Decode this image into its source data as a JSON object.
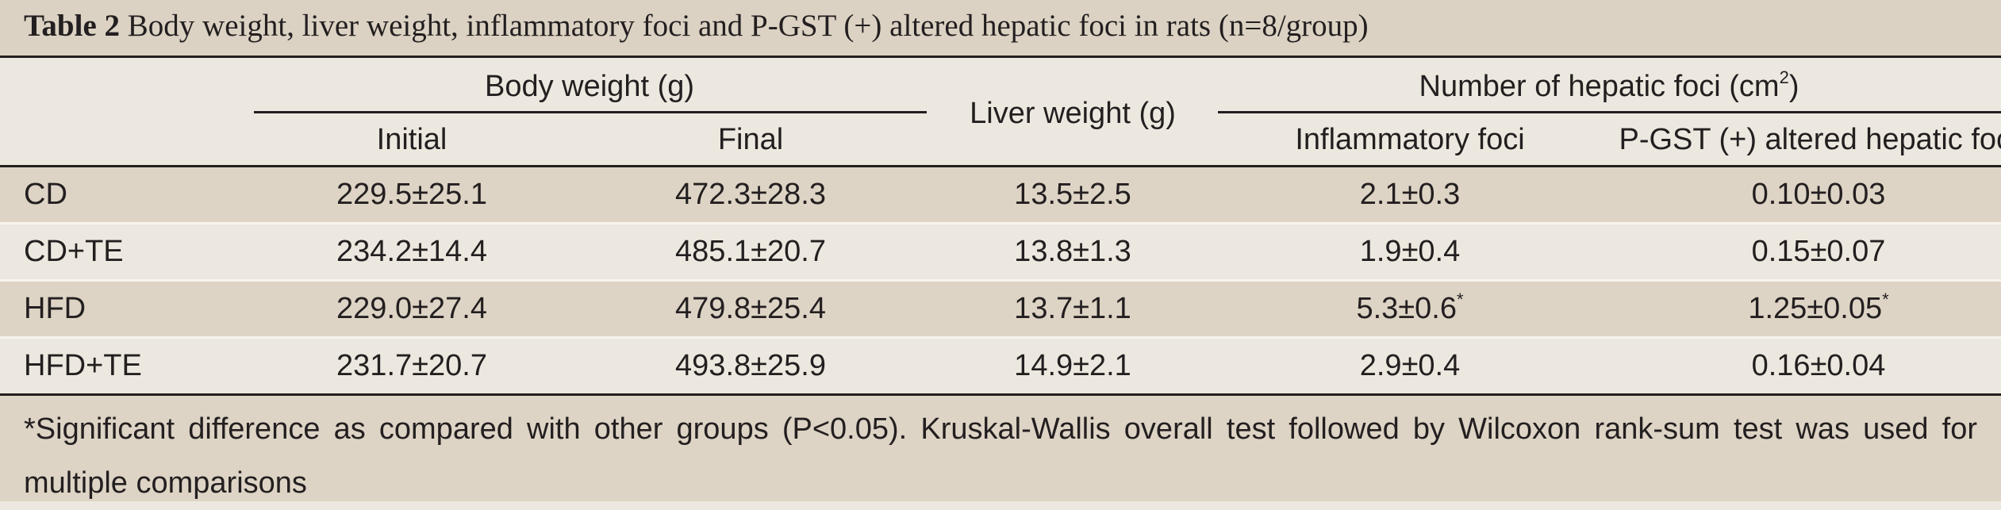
{
  "caption": {
    "label": "Table 2",
    "title": " Body weight, liver weight, inflammatory foci and P-GST (+) altered hepatic foci in rats (n=8/group)"
  },
  "header": {
    "body_weight": "Body weight (g)",
    "initial": "Initial",
    "final": "Final",
    "liver_weight": "Liver weight (g)",
    "hepatic_foci_prefix": "Number of hepatic foci (cm",
    "hepatic_foci_sup": "2",
    "hepatic_foci_suffix": ")",
    "inflammatory": "Inflammatory foci",
    "pgst": "P-GST (+) altered hepatic foci"
  },
  "rows": [
    {
      "group": "CD",
      "initial": "229.5±25.1",
      "final": "472.3±28.3",
      "liver": "13.5±2.5",
      "inflammatory": "2.1±0.3",
      "inflammatory_mark": "",
      "pgst": "0.10±0.03",
      "pgst_mark": ""
    },
    {
      "group": "CD+TE",
      "initial": "234.2±14.4",
      "final": "485.1±20.7",
      "liver": "13.8±1.3",
      "inflammatory": "1.9±0.4",
      "inflammatory_mark": "",
      "pgst": "0.15±0.07",
      "pgst_mark": ""
    },
    {
      "group": "HFD",
      "initial": "229.0±27.4",
      "final": "479.8±25.4",
      "liver": "13.7±1.1",
      "inflammatory": "5.3±0.6",
      "inflammatory_mark": "*",
      "pgst": "1.25±0.05",
      "pgst_mark": "*"
    },
    {
      "group": "HFD+TE",
      "initial": "231.7±20.7",
      "final": "493.8±25.9",
      "liver": "14.9±2.1",
      "inflammatory": "2.9±0.4",
      "inflammatory_mark": "",
      "pgst": "0.16±0.04",
      "pgst_mark": ""
    }
  ],
  "footnote": "*Significant difference as compared with other groups (P<0.05). Kruskal-Wallis overall test followed by Wilcoxon rank-sum test was used for multiple comparisons",
  "colors": {
    "caption_bg": "#dbd2c3",
    "row_shade": "#ddd4c5",
    "row_light": "#ede8df",
    "rule": "#231f20"
  }
}
